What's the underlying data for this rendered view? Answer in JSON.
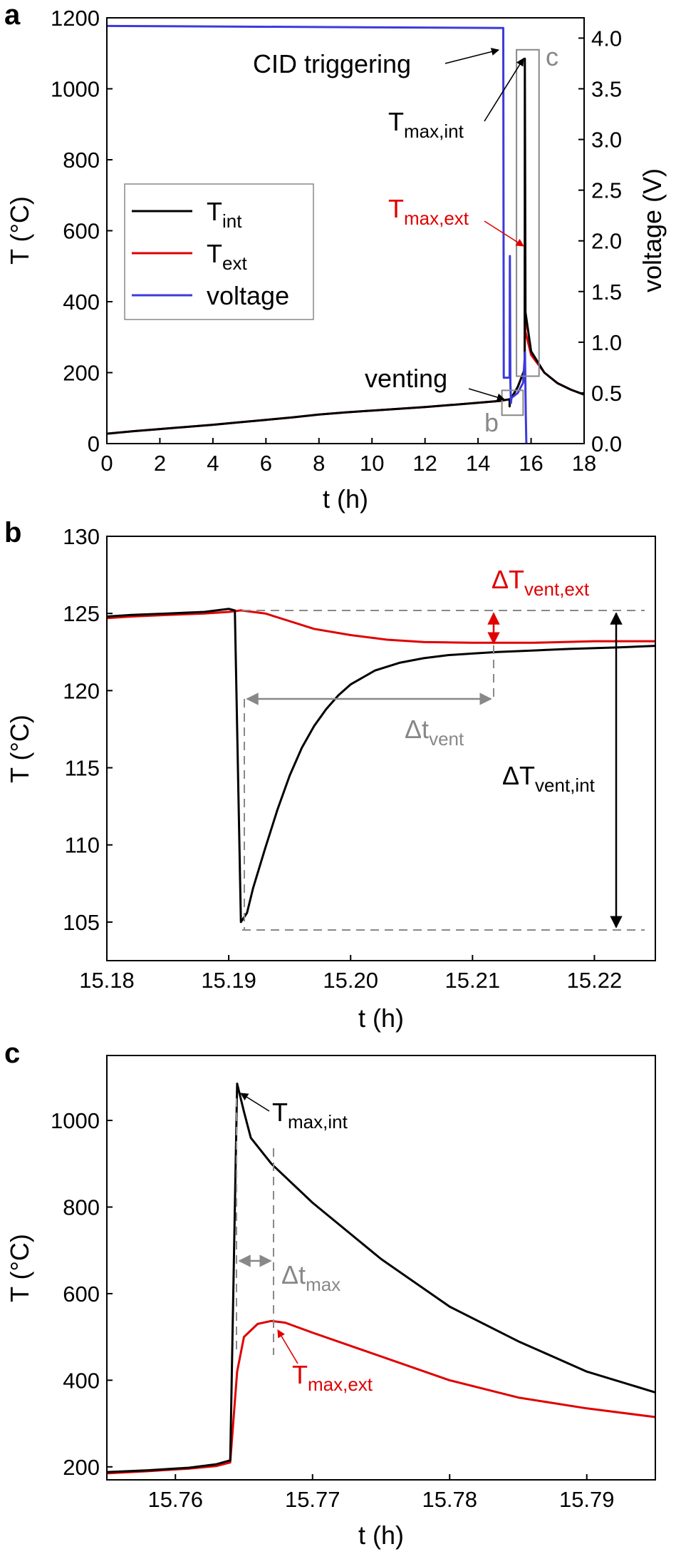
{
  "figure": {
    "panel_labels": [
      "a",
      "b",
      "c"
    ]
  },
  "colors": {
    "T_int": "#000000",
    "T_ext": "#e00000",
    "voltage": "#3b3bdc",
    "annotation_gray": "#888888"
  },
  "chart_data": [
    {
      "panel": "a",
      "type": "line",
      "xlabel": "t (h)",
      "ylabel": "T (°C)",
      "y2label": "voltage (V)",
      "xlim": [
        0,
        18
      ],
      "ylim": [
        0,
        1200
      ],
      "y2lim": [
        0,
        4.2
      ],
      "xticks": [
        0,
        2,
        4,
        6,
        8,
        10,
        12,
        14,
        16,
        18
      ],
      "yticks": [
        0,
        200,
        400,
        600,
        800,
        1000,
        1200
      ],
      "y2ticks": [
        "0.0",
        "0.5",
        "1.0",
        "1.5",
        "2.0",
        "2.5",
        "3.0",
        "3.5",
        "4.0"
      ],
      "legend": {
        "placement": "left",
        "entries": [
          {
            "base": "T",
            "sub": "int",
            "color": "#000000"
          },
          {
            "base": "T",
            "sub": "ext",
            "color": "#e00000"
          },
          {
            "base": "voltage",
            "sub": "",
            "color": "#3b3bdc"
          }
        ]
      },
      "series": [
        {
          "name": "T_int",
          "axis": "left",
          "x": [
            0,
            1,
            2,
            3,
            4,
            5,
            6,
            7,
            8,
            9,
            10,
            11,
            12,
            13,
            14,
            14.8,
            15.19,
            15.191,
            15.21,
            15.5,
            15.76,
            15.765,
            15.79,
            16.0,
            16.5,
            17.0,
            17.5,
            18.0
          ],
          "y": [
            28,
            35,
            41,
            47,
            53,
            60,
            67,
            74,
            82,
            88,
            93,
            98,
            103,
            109,
            115,
            120,
            125,
            105,
            122,
            160,
            210,
            1085,
            370,
            260,
            200,
            170,
            152,
            138
          ]
        },
        {
          "name": "T_ext",
          "axis": "left",
          "x": [
            0,
            1,
            2,
            3,
            4,
            5,
            6,
            7,
            8,
            9,
            10,
            11,
            12,
            13,
            14,
            14.8,
            15.19,
            15.21,
            15.5,
            15.76,
            15.767,
            15.79,
            16.0,
            16.5,
            17.0,
            17.5,
            18.0
          ],
          "y": [
            28,
            35,
            41,
            47,
            53,
            60,
            67,
            74,
            82,
            88,
            93,
            98,
            103,
            109,
            115,
            120,
            125,
            123,
            160,
            210,
            537,
            315,
            250,
            200,
            170,
            152,
            138
          ]
        },
        {
          "name": "voltage",
          "axis": "right",
          "x": [
            0,
            14.95,
            14.97,
            15.19,
            15.2,
            15.22,
            15.24,
            15.26,
            15.5,
            15.7,
            15.77,
            15.8,
            15.82
          ],
          "y": [
            4.12,
            4.1,
            0.65,
            0.65,
            1.85,
            0.6,
            0.4,
            0.45,
            0.5,
            0.6,
            0.9,
            0.3,
            0.0
          ]
        }
      ],
      "annotations": [
        {
          "text": "CID triggering",
          "sub": "",
          "color": "#000000"
        },
        {
          "text": "T",
          "sub": "max,int",
          "color": "#000000"
        },
        {
          "text": "T",
          "sub": "max,ext",
          "color": "#e00000"
        },
        {
          "text": "venting",
          "sub": "",
          "color": "#000000"
        },
        {
          "text": "b",
          "sub": "",
          "color": "#888888"
        },
        {
          "text": "c",
          "sub": "",
          "color": "#888888"
        }
      ],
      "inset_boxes": [
        {
          "label": "b",
          "x": [
            14.9,
            15.7
          ],
          "y": [
            80,
            150
          ]
        },
        {
          "label": "c",
          "x": [
            15.45,
            16.3
          ],
          "y": [
            190,
            1110
          ]
        }
      ]
    },
    {
      "panel": "b",
      "type": "line",
      "xlabel": "t (h)",
      "ylabel": "T (°C)",
      "xlim": [
        15.18,
        15.225
      ],
      "ylim": [
        102.5,
        130
      ],
      "xticks": [
        "15.18",
        "15.19",
        "15.20",
        "15.21",
        "15.22"
      ],
      "yticks": [
        105,
        110,
        115,
        120,
        125,
        130
      ],
      "series": [
        {
          "name": "T_int",
          "x": [
            15.18,
            15.182,
            15.185,
            15.188,
            15.19,
            15.1905,
            15.191,
            15.1915,
            15.192,
            15.193,
            15.194,
            15.195,
            15.196,
            15.197,
            15.198,
            15.199,
            15.2,
            15.202,
            15.204,
            15.206,
            15.208,
            15.21,
            15.212,
            15.215,
            15.218,
            15.222,
            15.225
          ],
          "y": [
            124.8,
            124.9,
            125.0,
            125.1,
            125.3,
            125.2,
            105.0,
            105.6,
            107.2,
            109.8,
            112.3,
            114.5,
            116.3,
            117.7,
            118.8,
            119.7,
            120.4,
            121.3,
            121.8,
            122.1,
            122.3,
            122.4,
            122.5,
            122.6,
            122.7,
            122.8,
            122.9
          ]
        },
        {
          "name": "T_ext",
          "x": [
            15.18,
            15.182,
            15.185,
            15.188,
            15.19,
            15.191,
            15.193,
            15.195,
            15.197,
            15.2,
            15.203,
            15.206,
            15.21,
            15.215,
            15.22,
            15.225
          ],
          "y": [
            124.7,
            124.8,
            124.9,
            125.0,
            125.1,
            125.2,
            125.0,
            124.5,
            124.0,
            123.6,
            123.3,
            123.15,
            123.1,
            123.1,
            123.2,
            123.2
          ]
        }
      ],
      "annotations": [
        {
          "text": "ΔT",
          "sub": "vent,ext",
          "color": "#e00000"
        },
        {
          "text": "Δt",
          "sub": "vent",
          "color": "#888888"
        },
        {
          "text": "ΔT",
          "sub": "vent,int",
          "color": "#000000"
        }
      ]
    },
    {
      "panel": "c",
      "type": "line",
      "xlabel": "t (h)",
      "ylabel": "T (°C)",
      "xlim": [
        15.755,
        15.795
      ],
      "ylim": [
        170,
        1150
      ],
      "xticks": [
        "15.76",
        "15.77",
        "15.78",
        "15.79"
      ],
      "yticks": [
        200,
        400,
        600,
        800,
        1000
      ],
      "series": [
        {
          "name": "T_int",
          "x": [
            15.755,
            15.758,
            15.761,
            15.763,
            15.764,
            15.7645,
            15.765,
            15.7655,
            15.767,
            15.77,
            15.775,
            15.78,
            15.785,
            15.79,
            15.795
          ],
          "y": [
            188,
            192,
            198,
            206,
            215,
            1085,
            1020,
            960,
            900,
            810,
            680,
            570,
            490,
            420,
            372
          ]
        },
        {
          "name": "T_ext",
          "x": [
            15.755,
            15.758,
            15.761,
            15.763,
            15.764,
            15.7645,
            15.765,
            15.766,
            15.767,
            15.768,
            15.77,
            15.775,
            15.78,
            15.785,
            15.79,
            15.795
          ],
          "y": [
            185,
            190,
            196,
            202,
            210,
            420,
            500,
            530,
            537,
            533,
            510,
            455,
            400,
            360,
            335,
            315
          ]
        }
      ],
      "annotations": [
        {
          "text": "T",
          "sub": "max,int",
          "color": "#000000"
        },
        {
          "text": "Δt",
          "sub": "max",
          "color": "#888888"
        },
        {
          "text": "T",
          "sub": "max,ext",
          "color": "#e00000"
        }
      ]
    }
  ]
}
